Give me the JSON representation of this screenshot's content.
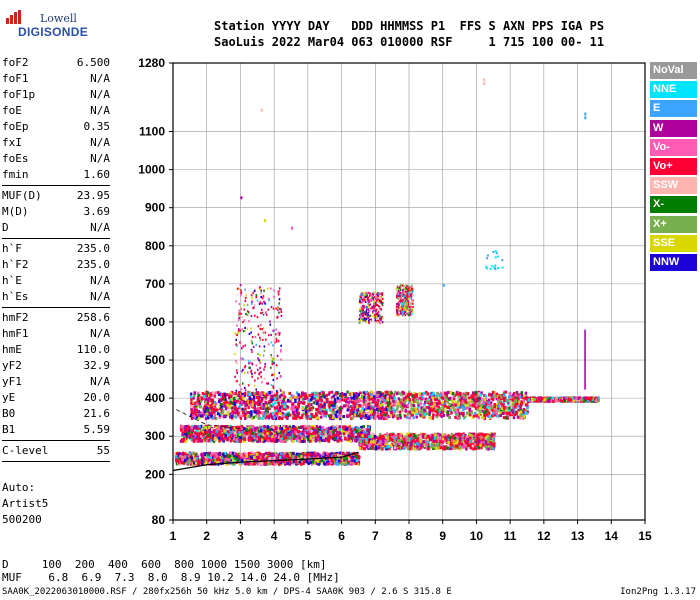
{
  "logo": {
    "line1": "Lowell",
    "line2": "DIGISONDE"
  },
  "header": {
    "line1": "Station YYYY DAY   DDD HHMMSS P1  FFS S AXN PPS IGA PS",
    "line2": "SaoLuis 2022 Mar04 063 010000 RSF     1 715 100 00- 11"
  },
  "params": [
    {
      "k": "foF2",
      "v": "6.500"
    },
    {
      "k": "foF1",
      "v": "N/A"
    },
    {
      "k": "foF1p",
      "v": "N/A"
    },
    {
      "k": "foE",
      "v": "N/A"
    },
    {
      "k": "foEp",
      "v": "0.35"
    },
    {
      "k": "fxI",
      "v": "N/A"
    },
    {
      "k": "foEs",
      "v": "N/A"
    },
    {
      "k": "fmin",
      "v": "1.60"
    },
    {
      "k": "MUF(D)",
      "v": "23.95"
    },
    {
      "k": "M(D)",
      "v": "3.69"
    },
    {
      "k": "D",
      "v": "N/A"
    },
    {
      "k": "h`F",
      "v": "235.0"
    },
    {
      "k": "h`F2",
      "v": "235.0"
    },
    {
      "k": "h`E",
      "v": "N/A"
    },
    {
      "k": "h`Es",
      "v": "N/A"
    },
    {
      "k": "hmF2",
      "v": "258.6"
    },
    {
      "k": "hmF1",
      "v": "N/A"
    },
    {
      "k": "hmE",
      "v": "110.0"
    },
    {
      "k": "yF2",
      "v": "32.9"
    },
    {
      "k": "yF1",
      "v": "N/A"
    },
    {
      "k": "yE",
      "v": "20.0"
    },
    {
      "k": "B0",
      "v": "21.6"
    },
    {
      "k": "B1",
      "v": "5.59"
    },
    {
      "k": "C-level",
      "v": "55"
    }
  ],
  "auto": {
    "line1": "Auto:",
    "line2": "Artist5",
    "line3": "500200"
  },
  "muf_table": {
    "row1": "D     100  200  400  600  800 1000 1500 3000 [km]",
    "row2": "MUF    6.8  6.9  7.3  8.0  8.9 10.2 14.0 24.0 [MHz]"
  },
  "footer": "SAA0K_2022063010000.RSF / 280fx256h 50 kHz 5.0 km / DPS-4 SAA0K 903 / 2.6 S 315.8 E",
  "version": "Ion2Png 1.3.17",
  "legend": [
    {
      "label": "NoVal",
      "color": "#999999"
    },
    {
      "label": "NNE",
      "color": "#00e4ff"
    },
    {
      "label": "E",
      "color": "#3aa4ff"
    },
    {
      "label": "W",
      "color": "#b0009c"
    },
    {
      "label": "Vo-",
      "color": "#ff5ab4"
    },
    {
      "label": "Vo+",
      "color": "#ff0034"
    },
    {
      "label": "SSW",
      "color": "#ffb4b0"
    },
    {
      "label": "X-",
      "color": "#007c00"
    },
    {
      "label": "X+",
      "color": "#78b050"
    },
    {
      "label": "SSE",
      "color": "#d8d800"
    },
    {
      "label": "NNW",
      "color": "#1c00d8"
    }
  ],
  "chart_data": {
    "type": "scatter",
    "x_ticks": [
      "1",
      "2",
      "3",
      "4",
      "5",
      "6",
      "7",
      "8",
      "9",
      "10",
      "11",
      "12",
      "13",
      "14",
      "15"
    ],
    "y_ticks": [
      "80",
      "200",
      "300",
      "400",
      "500",
      "600",
      "700",
      "800",
      "900",
      "1000",
      "1100",
      "1280"
    ],
    "xlim": [
      1,
      15
    ],
    "ylim": [
      80,
      1280
    ],
    "grid": true,
    "traces": [
      {
        "type": "echo_band",
        "x_range": [
          1.05,
          6.5
        ],
        "h": [
          230,
          260
        ]
      },
      {
        "type": "echo_band",
        "x_range": [
          1.2,
          6.8
        ],
        "h": [
          290,
          330
        ]
      },
      {
        "type": "echo_band",
        "x_range": [
          1.5,
          11.5
        ],
        "h": [
          350,
          420
        ]
      },
      {
        "type": "echo_band",
        "x_range": [
          6.5,
          10.5
        ],
        "h": [
          270,
          310
        ]
      },
      {
        "type": "echo_band",
        "x_range": [
          11.5,
          13.6
        ],
        "h": [
          395,
          405
        ]
      },
      {
        "type": "spread",
        "x_range": [
          2.8,
          4.2
        ],
        "h": [
          420,
          700
        ]
      },
      {
        "type": "spread",
        "x_range": [
          6.5,
          7.2
        ],
        "h": [
          600,
          680
        ]
      },
      {
        "type": "spread",
        "x_range": [
          7.6,
          8.1
        ],
        "h": [
          620,
          700
        ]
      },
      {
        "type": "cluster",
        "x": 10.5,
        "h": [
          740,
          790
        ]
      },
      {
        "type": "line",
        "x": 13.2,
        "h": [
          430,
          580
        ]
      }
    ],
    "profile_curve": [
      [
        1,
        210
      ],
      [
        2,
        225
      ],
      [
        3,
        232
      ],
      [
        4,
        236
      ],
      [
        5,
        240
      ],
      [
        6,
        245
      ],
      [
        6.5,
        258
      ]
    ]
  }
}
